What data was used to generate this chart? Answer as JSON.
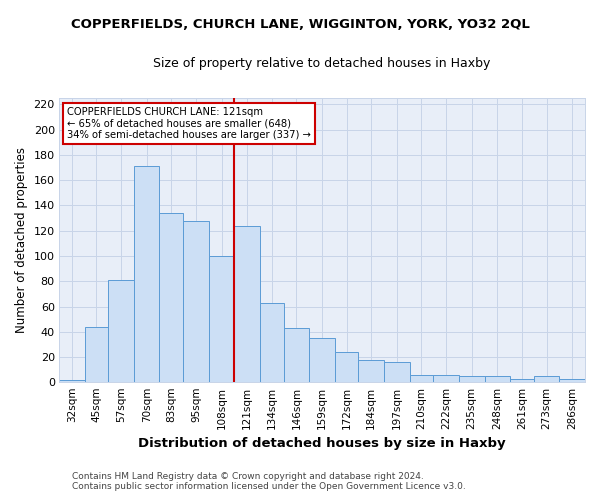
{
  "title": "COPPERFIELDS, CHURCH LANE, WIGGINTON, YORK, YO32 2QL",
  "subtitle": "Size of property relative to detached houses in Haxby",
  "xlabel": "Distribution of detached houses by size in Haxby",
  "ylabel": "Number of detached properties",
  "footer_line1": "Contains HM Land Registry data © Crown copyright and database right 2024.",
  "footer_line2": "Contains public sector information licensed under the Open Government Licence v3.0.",
  "annotation_title": "COPPERFIELDS CHURCH LANE: 121sqm",
  "annotation_line1": "← 65% of detached houses are smaller (648)",
  "annotation_line2": "34% of semi-detached houses are larger (337) →",
  "marker_value": 121,
  "bar_labels": [
    "32sqm",
    "45sqm",
    "57sqm",
    "70sqm",
    "83sqm",
    "95sqm",
    "108sqm",
    "121sqm",
    "134sqm",
    "146sqm",
    "159sqm",
    "172sqm",
    "184sqm",
    "197sqm",
    "210sqm",
    "222sqm",
    "235sqm",
    "248sqm",
    "261sqm",
    "273sqm",
    "286sqm"
  ],
  "bar_values": [
    2,
    44,
    81,
    171,
    134,
    128,
    100,
    124,
    63,
    43,
    35,
    24,
    18,
    16,
    6,
    6,
    5,
    5,
    3,
    5,
    3
  ],
  "bar_edges": [
    32,
    45,
    57,
    70,
    83,
    95,
    108,
    121,
    134,
    146,
    159,
    172,
    184,
    197,
    210,
    222,
    235,
    248,
    261,
    273,
    286,
    299
  ],
  "bar_color": "#ccdff5",
  "bar_edge_color": "#5b9bd5",
  "marker_line_color": "#cc0000",
  "grid_color": "#c8d4e8",
  "plot_bg_color": "#e8eef8",
  "fig_bg_color": "#ffffff",
  "ylim": [
    0,
    225
  ],
  "yticks": [
    0,
    20,
    40,
    60,
    80,
    100,
    120,
    140,
    160,
    180,
    200,
    220
  ]
}
